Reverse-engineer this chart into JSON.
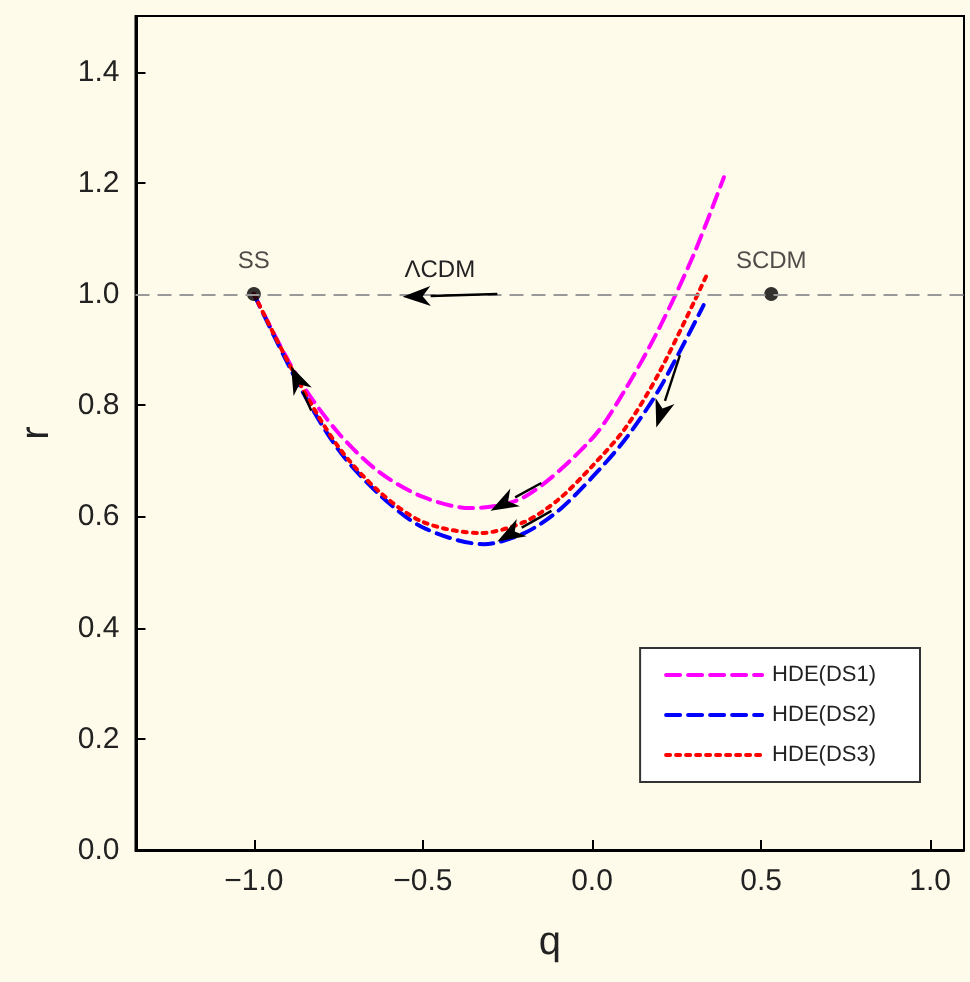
{
  "chart_data": {
    "type": "line",
    "xlabel": "q",
    "ylabel": "r",
    "xlim": [
      -1.35,
      1.1
    ],
    "ylim": [
      0,
      1.5
    ],
    "xticks": [
      {
        "value": -1,
        "label": "−1.0"
      },
      {
        "value": -0.5,
        "label": "−0.5"
      },
      {
        "value": 0,
        "label": "0.0"
      },
      {
        "value": 0.5,
        "label": "0.5"
      },
      {
        "value": 1,
        "label": "1.0"
      }
    ],
    "yticks": [
      {
        "value": 0,
        "label": "0.0"
      },
      {
        "value": 0.2,
        "label": "0.2"
      },
      {
        "value": 0.4,
        "label": "0.4"
      },
      {
        "value": 0.6,
        "label": "0.6"
      },
      {
        "value": 0.8,
        "label": "0.8"
      },
      {
        "value": 1,
        "label": "1.0"
      },
      {
        "value": 1.2,
        "label": "1.2"
      },
      {
        "value": 1.4,
        "label": "1.4"
      }
    ],
    "grid": false,
    "legend": "bottom right",
    "marker": "none",
    "series": [
      {
        "name": "HDE(DS1)",
        "color": "#ff00ff",
        "line_style": "dashed",
        "x": [
          -1,
          -0.87,
          -0.75,
          -0.63,
          -0.5,
          -0.36,
          -0.2,
          0,
          0.1,
          0.2,
          0.3,
          0.39
        ],
        "values": [
          1,
          0.85,
          0.75,
          0.68,
          0.635,
          0.615,
          0.635,
          0.74,
          0.83,
          0.94,
          1.07,
          1.21
        ]
      },
      {
        "name": "HDE(DS2)",
        "color": "#0000ff",
        "line_style": "dashed",
        "x": [
          -1,
          -0.87,
          -0.75,
          -0.63,
          -0.5,
          -0.32,
          -0.2,
          -0.1,
          0,
          0.1,
          0.2,
          0.33
        ],
        "values": [
          1,
          0.84,
          0.72,
          0.64,
          0.58,
          0.55,
          0.57,
          0.61,
          0.67,
          0.74,
          0.83,
          0.98
        ]
      },
      {
        "name": "HDE(DS3)",
        "color": "#ff0000",
        "line_style": "dotted",
        "x": [
          -1,
          -0.87,
          -0.75,
          -0.63,
          -0.5,
          -0.33,
          -0.2,
          -0.1,
          0,
          0.1,
          0.2,
          0.34
        ],
        "values": [
          1,
          0.845,
          0.725,
          0.645,
          0.59,
          0.57,
          0.59,
          0.63,
          0.69,
          0.76,
          0.86,
          1.035
        ]
      },
      {
        "type": "scatter",
        "color": "#000000",
        "marker": "circle",
        "x": [
          -1,
          0.53
        ],
        "values": [
          1,
          1
        ]
      }
    ],
    "ref_lines": [
      {
        "axis": "y",
        "value": 1,
        "color": "#999999",
        "line_style": "dashed"
      }
    ],
    "annotations": [
      {
        "text": "SS",
        "x": -1,
        "y": 1
      },
      {
        "text": "SCDM",
        "x": 0.53,
        "y": 1
      },
      "ΛCDM"
    ]
  }
}
